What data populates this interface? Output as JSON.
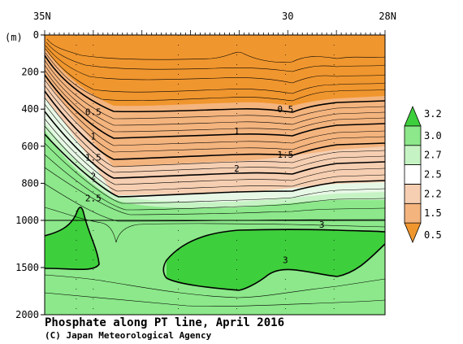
{
  "chart_data": {
    "type": "contour",
    "title": "Phosphate along PT line, April 2016",
    "credit": "(C) Japan Meteorological Agency",
    "x_axis": {
      "range": [
        35,
        28
      ],
      "ticks": [
        {
          "value": 35,
          "label": "35N"
        },
        {
          "value": 30,
          "label": "30"
        },
        {
          "value": 28,
          "label": "28N"
        }
      ]
    },
    "y_axis": {
      "unit_label": "(m)",
      "range": [
        0,
        2000
      ],
      "scale_break_depth": 1000,
      "ticks": [
        {
          "value": 0,
          "label": "0"
        },
        {
          "value": 200,
          "label": "200"
        },
        {
          "value": 400,
          "label": "400"
        },
        {
          "value": 600,
          "label": "600"
        },
        {
          "value": 800,
          "label": "800"
        },
        {
          "value": 1000,
          "label": "1000"
        },
        {
          "value": 1500,
          "label": "1500"
        },
        {
          "value": 2000,
          "label": "2000"
        }
      ]
    },
    "colorbar": {
      "levels": [
        "0.5",
        "1.5",
        "2.2",
        "2.5",
        "2.7",
        "3.0",
        "3.2"
      ],
      "colors": [
        "#f0962e",
        "#f4b47e",
        "#f6cfb2",
        "#ffffff",
        "#c6f3c4",
        "#8ce88a",
        "#3ecf3c"
      ]
    },
    "contour_labels": [
      {
        "text": "0.5",
        "lat": 34.0,
        "depth": 415
      },
      {
        "text": "0.5",
        "lat": 30.05,
        "depth": 400
      },
      {
        "text": "1",
        "lat": 34.0,
        "depth": 545
      },
      {
        "text": "1",
        "lat": 31.05,
        "depth": 518
      },
      {
        "text": "1.5",
        "lat": 34.0,
        "depth": 660
      },
      {
        "text": "1.5",
        "lat": 30.05,
        "depth": 645
      },
      {
        "text": "2",
        "lat": 34.0,
        "depth": 760
      },
      {
        "text": "2",
        "lat": 31.05,
        "depth": 720
      },
      {
        "text": "2.5",
        "lat": 34.0,
        "depth": 880
      },
      {
        "text": "3",
        "lat": 29.3,
        "depth": 1045
      },
      {
        "text": "3",
        "lat": 30.05,
        "depth": 1420
      }
    ]
  }
}
